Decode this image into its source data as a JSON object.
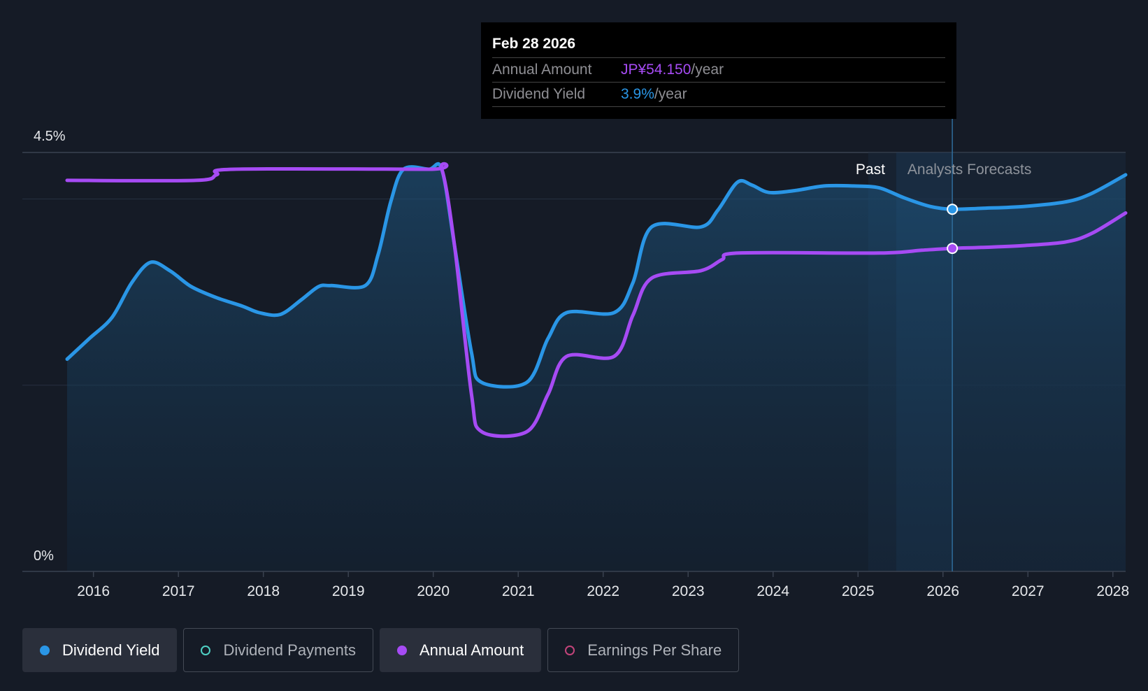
{
  "tooltip": {
    "date": "Feb 28 2026",
    "annual_label": "Annual Amount",
    "annual_value": "JP¥54.150",
    "annual_unit": "/year",
    "yield_label": "Dividend Yield",
    "yield_value": "3.9%",
    "yield_unit": "/year"
  },
  "regions": {
    "past": "Past",
    "forecast": "Analysts Forecasts"
  },
  "legend": [
    {
      "label": "Dividend Yield",
      "color": "#2a96e6",
      "active": true,
      "filled": true
    },
    {
      "label": "Dividend Payments",
      "color": "#4fd1c5",
      "active": false,
      "filled": false
    },
    {
      "label": "Annual Amount",
      "color": "#a64bf4",
      "active": true,
      "filled": true
    },
    {
      "label": "Earnings Per Share",
      "color": "#c2447a",
      "active": false,
      "filled": false
    }
  ],
  "chart_data": {
    "type": "line",
    "title": "",
    "xlabel": "",
    "ylabel": "",
    "ylim": [
      0,
      4.5
    ],
    "xlim": [
      2015.74,
      2028.2
    ],
    "y_ticks": [
      "0%",
      "4.5%"
    ],
    "x_ticks": [
      "2016",
      "2017",
      "2018",
      "2019",
      "2020",
      "2021",
      "2022",
      "2023",
      "2024",
      "2025",
      "2026",
      "2027",
      "2028"
    ],
    "forecast_start": 2025.17,
    "forecast_shade_start": 2025.5,
    "marker_x": 2026.16,
    "series": [
      {
        "name": "Dividend Yield",
        "color": "#2a96e6",
        "x": [
          2015.74,
          2016.0,
          2016.27,
          2016.5,
          2016.72,
          2016.95,
          2017.2,
          2017.5,
          2017.8,
          2018.0,
          2018.25,
          2018.5,
          2018.7,
          2018.85,
          2019.25,
          2019.4,
          2019.55,
          2019.7,
          2020.0,
          2020.15,
          2020.3,
          2020.5,
          2020.62,
          2021.15,
          2021.4,
          2021.62,
          2022.18,
          2022.4,
          2022.62,
          2023.2,
          2023.4,
          2023.63,
          2023.8,
          2024.0,
          2024.3,
          2024.65,
          2025.0,
          2025.3,
          2025.6,
          2025.9,
          2026.16,
          2026.5,
          2027.0,
          2027.5,
          2027.8,
          2028.2
        ],
        "y": [
          2.28,
          2.5,
          2.73,
          3.1,
          3.32,
          3.23,
          3.06,
          2.94,
          2.85,
          2.78,
          2.76,
          2.92,
          3.06,
          3.07,
          3.07,
          3.4,
          3.97,
          4.32,
          4.32,
          4.32,
          3.5,
          2.35,
          2.03,
          2.03,
          2.5,
          2.78,
          2.78,
          3.1,
          3.7,
          3.7,
          3.88,
          4.18,
          4.15,
          4.07,
          4.09,
          4.14,
          4.14,
          4.12,
          4.01,
          3.92,
          3.89,
          3.9,
          3.92,
          3.97,
          4.06,
          4.26
        ]
      },
      {
        "name": "Annual Amount",
        "color": "#a64bf4",
        "x": [
          2015.74,
          2017.25,
          2017.5,
          2017.7,
          2020.0,
          2020.15,
          2020.3,
          2020.5,
          2020.62,
          2021.15,
          2021.4,
          2021.62,
          2022.18,
          2022.4,
          2022.62,
          2023.2,
          2023.45,
          2023.65,
          2025.3,
          2025.8,
          2026.16,
          2026.5,
          2027.0,
          2027.5,
          2027.8,
          2028.2
        ],
        "y": [
          4.2,
          4.2,
          4.26,
          4.32,
          4.32,
          4.32,
          3.5,
          1.9,
          1.5,
          1.5,
          1.9,
          2.31,
          2.31,
          2.75,
          3.15,
          3.23,
          3.35,
          3.42,
          3.42,
          3.45,
          3.47,
          3.48,
          3.5,
          3.54,
          3.63,
          3.85
        ]
      }
    ]
  }
}
